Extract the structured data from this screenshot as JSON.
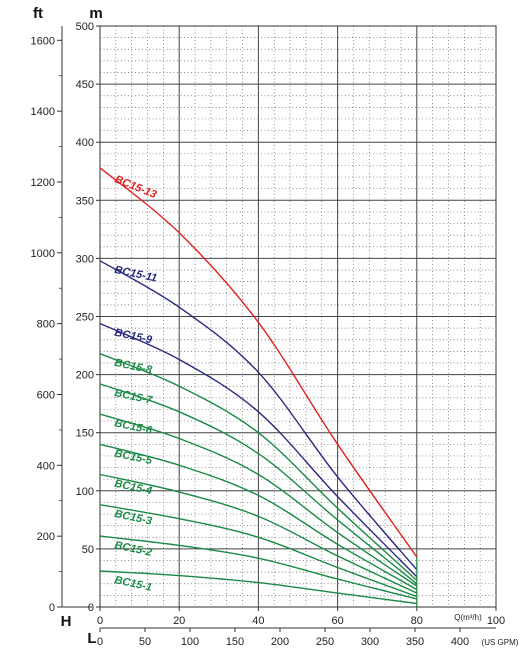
{
  "chart_data": {
    "type": "line",
    "title": "",
    "units": {
      "ft": "ft",
      "m": "m",
      "H": "H",
      "L": "L"
    },
    "q_axis": {
      "label": "Q(m³/h)",
      "range": [
        0,
        100
      ],
      "ticks": [
        "0",
        "20",
        "40",
        "60",
        "80",
        "100"
      ]
    },
    "usgpm_axis": {
      "label": "(US GPM)",
      "range": [
        0,
        440
      ],
      "ticks": [
        "0",
        "50",
        "100",
        "150",
        "200",
        "250",
        "300",
        "350",
        "400"
      ]
    },
    "m_axis": {
      "range": [
        0,
        500
      ],
      "ticks": [
        "0",
        "50",
        "100",
        "150",
        "200",
        "250",
        "300",
        "350",
        "400",
        "450",
        "500"
      ]
    },
    "ft_axis": {
      "range": [
        0,
        1640
      ],
      "ticks": [
        "0",
        "200",
        "400",
        "600",
        "800",
        "1000",
        "1200",
        "1400",
        "1600"
      ]
    },
    "grid": true,
    "x": [
      0,
      20,
      40,
      60,
      80
    ],
    "series": [
      {
        "name": "BC15-13",
        "color": "#e02020",
        "values": [
          378,
          322,
          245,
          140,
          43
        ]
      },
      {
        "name": "BC15-11",
        "color": "#2a2a80",
        "values": [
          298,
          258,
          202,
          112,
          32
        ]
      },
      {
        "name": "BC15-9",
        "color": "#2a2a80",
        "values": [
          244,
          213,
          168,
          95,
          26
        ]
      },
      {
        "name": "BC15-8",
        "color": "#1a8a45",
        "values": [
          218,
          190,
          150,
          85,
          23
        ]
      },
      {
        "name": "BC15-7",
        "color": "#1a8a45",
        "values": [
          192,
          168,
          132,
          75,
          20
        ]
      },
      {
        "name": "BC15-6",
        "color": "#1a8a45",
        "values": [
          166,
          145,
          114,
          64,
          18
        ]
      },
      {
        "name": "BC15-5",
        "color": "#1a8a45",
        "values": [
          140,
          122,
          96,
          54,
          15
        ]
      },
      {
        "name": "BC15-4",
        "color": "#1a8a45",
        "values": [
          114,
          99,
          78,
          44,
          12
        ]
      },
      {
        "name": "BC15-3",
        "color": "#1a8a45",
        "values": [
          88,
          76,
          60,
          34,
          9
        ]
      },
      {
        "name": "BC15-2",
        "color": "#1a8a45",
        "values": [
          61,
          53,
          42,
          24,
          7
        ]
      },
      {
        "name": "BC15-1",
        "color": "#1a8a45",
        "values": [
          31,
          27,
          21,
          12,
          3
        ]
      }
    ]
  }
}
